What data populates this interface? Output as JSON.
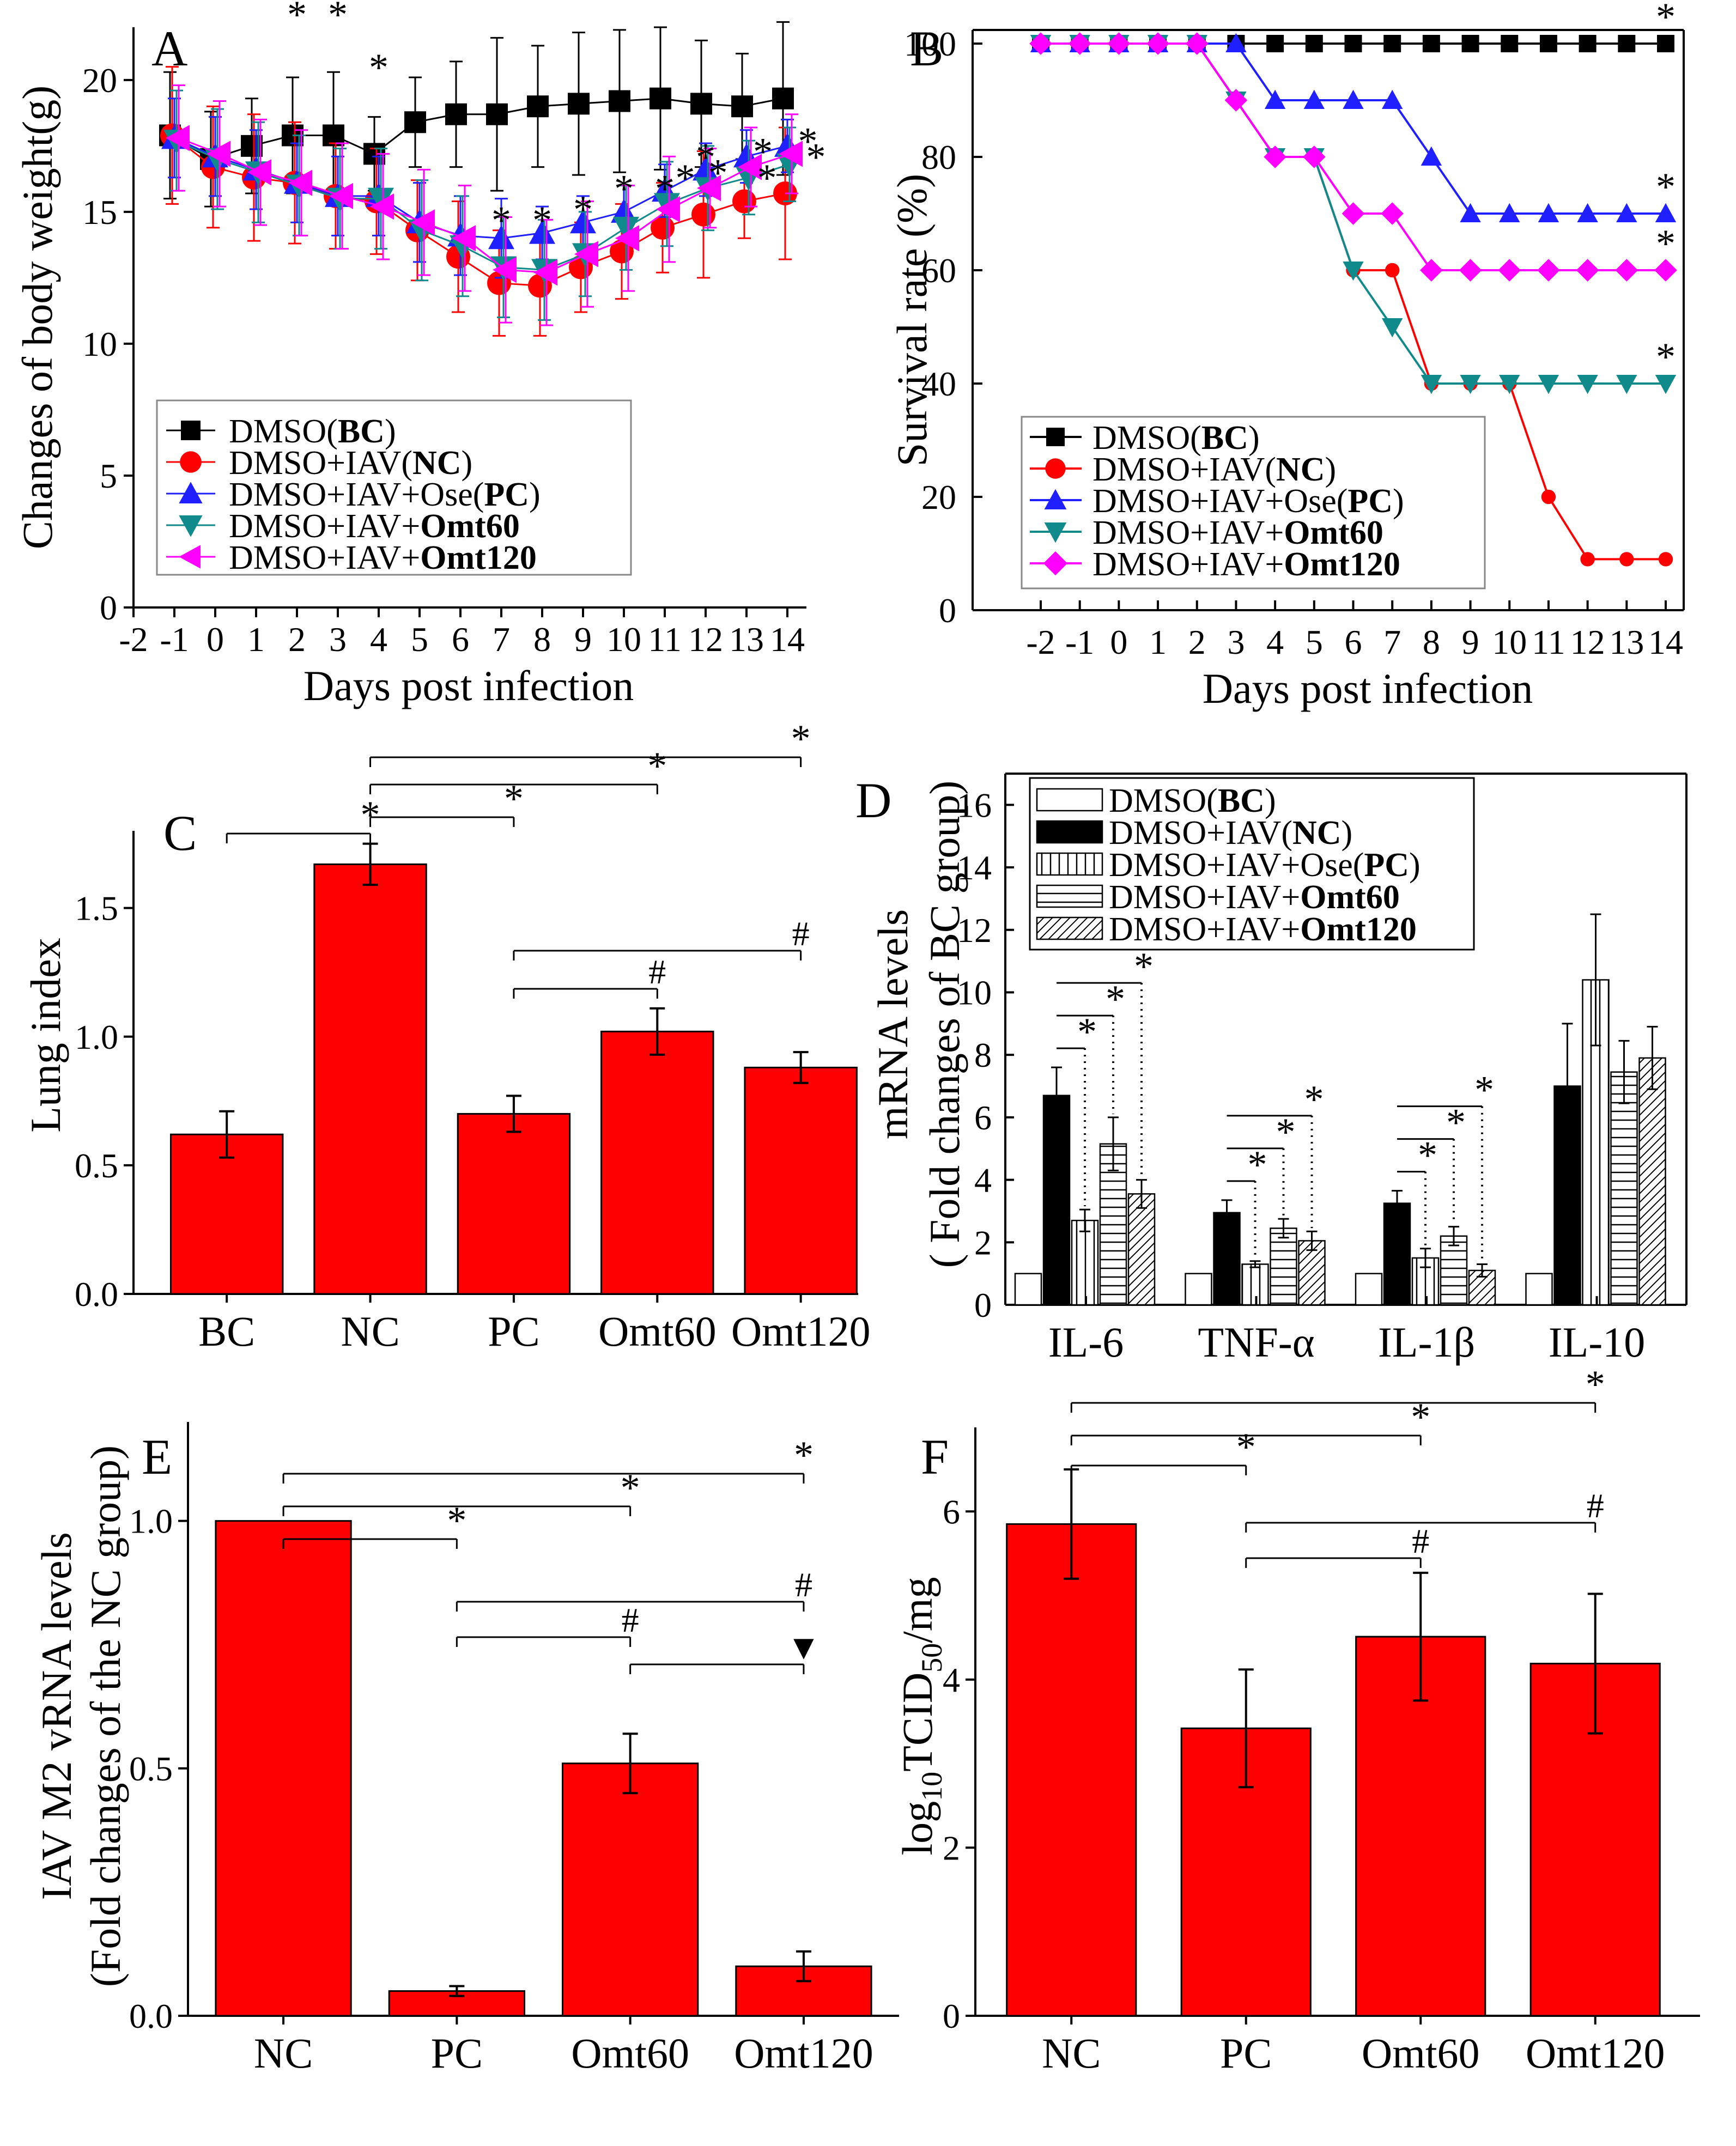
{
  "figure": {
    "colors": {
      "red": "#ff0000",
      "black": "#000000",
      "blue": "#1f1fff",
      "teal": "#108a8a",
      "magenta": "#ff00ff",
      "white": "#ffffff"
    }
  },
  "chart_data": [
    {
      "panel": "A",
      "type": "line",
      "title": "",
      "xlabel": "Days post infection",
      "ylabel": "Changes of  body weight(g)",
      "xlim": [
        -2,
        14
      ],
      "ylim": [
        0,
        22
      ],
      "xticks": [
        "-2",
        "-1",
        "0",
        "1",
        "2",
        "3",
        "4",
        "5",
        "6",
        "7",
        "8",
        "9",
        "10",
        "11",
        "12",
        "13",
        "14"
      ],
      "yticks": [
        "0",
        "5",
        "10",
        "15",
        "20"
      ],
      "x": [
        -1,
        0,
        1,
        2,
        3,
        4,
        5,
        6,
        7,
        8,
        9,
        10,
        11,
        12,
        13,
        14
      ],
      "series": [
        {
          "name": "DMSO(BC)",
          "name_plain": "DMSO(",
          "name_bold": "BC",
          "name_tail": ")",
          "color": "#000000",
          "marker": "square",
          "values": [
            17.9,
            17.0,
            17.5,
            17.9,
            17.9,
            17.2,
            18.4,
            18.7,
            18.7,
            19.0,
            19.1,
            19.2,
            19.3,
            19.1,
            19.0,
            19.3
          ],
          "err": [
            2.4,
            1.8,
            1.8,
            2.2,
            2.4,
            1.4,
            1.7,
            2.0,
            2.9,
            2.3,
            2.7,
            2.7,
            2.7,
            2.4,
            2.0,
            2.9
          ]
        },
        {
          "name": "DMSO+IAV(NC)",
          "name_plain": "DMSO+IAV(",
          "name_bold": "NC",
          "name_tail": ")",
          "color": "#ff0000",
          "marker": "circle",
          "values": [
            17.9,
            16.7,
            16.3,
            16.1,
            15.6,
            15.4,
            14.3,
            13.3,
            12.3,
            12.2,
            12.9,
            13.5,
            14.4,
            14.9,
            15.4,
            15.7
          ],
          "err": [
            2.6,
            2.3,
            2.4,
            2.3,
            2.0,
            2.0,
            1.9,
            2.1,
            2.0,
            1.9,
            1.7,
            1.8,
            1.7,
            2.4,
            1.4,
            2.5
          ]
        },
        {
          "name": "DMSO+IAV+Ose(PC)",
          "name_plain": "DMSO+IAV+Ose(",
          "name_bold": "PC",
          "name_tail": ")",
          "color": "#1f1fff",
          "marker": "triangle-up",
          "values": [
            17.8,
            17.1,
            16.6,
            16.1,
            15.6,
            15.6,
            14.6,
            14.1,
            14.0,
            14.2,
            14.6,
            15.0,
            15.8,
            16.6,
            17.1,
            17.5
          ],
          "err": [
            1.5,
            1.5,
            1.5,
            1.5,
            1.5,
            1.5,
            1.5,
            1.5,
            1.5,
            1.0,
            1.0,
            1.0,
            1.0,
            1.0,
            1.0,
            1.0
          ]
        },
        {
          "name": "DMSO+IAV+Omt60",
          "name_plain": "DMSO+IAV+",
          "name_bold": "Omt60",
          "name_tail": "",
          "color": "#108a8a",
          "marker": "triangle-down",
          "values": [
            17.7,
            17.0,
            16.5,
            16.0,
            15.5,
            15.5,
            14.3,
            13.7,
            12.9,
            12.8,
            13.4,
            14.4,
            15.3,
            15.9,
            16.3,
            16.8
          ],
          "err": [
            1.9,
            1.9,
            1.9,
            1.9,
            1.9,
            1.9,
            1.9,
            1.9,
            1.9,
            1.9,
            1.6,
            1.6,
            1.6,
            1.6,
            1.4,
            1.4
          ]
        },
        {
          "name": "DMSO+IAV+Omt120",
          "name_plain": "DMSO+IAV+",
          "name_bold": "Omt120",
          "name_tail": "",
          "color": "#ff00ff",
          "marker": "triangle-left",
          "values": [
            17.8,
            17.2,
            16.5,
            16.1,
            15.6,
            15.2,
            14.6,
            14.0,
            12.8,
            12.7,
            13.4,
            14.0,
            15.1,
            15.9,
            16.7,
            17.2
          ],
          "err": [
            2.0,
            2.0,
            2.0,
            2.0,
            2.0,
            2.0,
            2.0,
            2.0,
            2.0,
            2.0,
            2.0,
            2.0,
            2.0,
            1.5,
            1.5,
            1.5
          ]
        }
      ],
      "annotations": "* above points"
    },
    {
      "panel": "B",
      "type": "line",
      "title": "",
      "xlabel": "Days post infection",
      "ylabel": "Survival rate (%)",
      "xlim": [
        -3,
        14.5
      ],
      "ylim": [
        0,
        100
      ],
      "xticks": [
        "-2",
        "-1",
        "0",
        "1",
        "2",
        "3",
        "4",
        "5",
        "6",
        "7",
        "8",
        "9",
        "10",
        "11",
        "12",
        "13",
        "14"
      ],
      "yticks": [
        "0",
        "20",
        "40",
        "60",
        "80",
        "100"
      ],
      "x": [
        -2,
        -1,
        0,
        1,
        2,
        3,
        4,
        5,
        6,
        7,
        8,
        9,
        10,
        11,
        12,
        13,
        14
      ],
      "series": [
        {
          "name": "DMSO(BC)",
          "name_plain": "DMSO(",
          "name_bold": "BC",
          "name_tail": ")",
          "color": "#000000",
          "marker": "square",
          "values": [
            100,
            100,
            100,
            100,
            100,
            100,
            100,
            100,
            100,
            100,
            100,
            100,
            100,
            100,
            100,
            100,
            100
          ]
        },
        {
          "name": "DMSO+IAV(NC)",
          "name_plain": "DMSO+IAV(",
          "name_bold": "NC",
          "name_tail": ")",
          "color": "#ff0000",
          "marker": "circle",
          "values": [
            100,
            100,
            100,
            100,
            100,
            90,
            80,
            80,
            60,
            60,
            40,
            40,
            40,
            20,
            9,
            9,
            9
          ]
        },
        {
          "name": "DMSO+IAV+Ose(PC)",
          "name_plain": "DMSO+IAV+Ose(",
          "name_bold": "PC",
          "name_tail": ")",
          "color": "#1f1fff",
          "marker": "triangle-up",
          "values": [
            100,
            100,
            100,
            100,
            100,
            100,
            90,
            90,
            90,
            90,
            80,
            70,
            70,
            70,
            70,
            70,
            70
          ]
        },
        {
          "name": "DMSO+IAV+Omt60",
          "name_plain": "DMSO+IAV+",
          "name_bold": "Omt60",
          "name_tail": "",
          "color": "#108a8a",
          "marker": "triangle-down",
          "values": [
            100,
            100,
            100,
            100,
            100,
            90,
            80,
            80,
            60,
            50,
            40,
            40,
            40,
            40,
            40,
            40,
            40
          ]
        },
        {
          "name": "DMSO+IAV+Omt120",
          "name_plain": "DMSO+IAV+",
          "name_bold": "Omt120",
          "name_tail": "",
          "color": "#ff00ff",
          "marker": "diamond",
          "values": [
            100,
            100,
            100,
            100,
            100,
            90,
            80,
            80,
            70,
            70,
            60,
            60,
            60,
            60,
            60,
            60,
            60
          ]
        }
      ],
      "annotations": "* at day 14 for BC, PC, Omt120, Omt60"
    },
    {
      "panel": "C",
      "type": "bar",
      "title": "",
      "xlabel": "",
      "ylabel": "Lung index",
      "ylim": [
        0,
        1.8
      ],
      "yticks": [
        "0.0",
        "0.5",
        "1.0",
        "1.5"
      ],
      "categories": [
        "BC",
        "NC",
        "PC",
        "Omt60",
        "Omt120"
      ],
      "values": [
        0.62,
        1.67,
        0.7,
        1.02,
        0.88
      ],
      "err": [
        0.09,
        0.08,
        0.07,
        0.09,
        0.06
      ],
      "color": "#ff0000",
      "brackets": [
        {
          "from": 0,
          "to": 1,
          "label": "*"
        },
        {
          "from": 1,
          "to": 2,
          "label": "*"
        },
        {
          "from": 1,
          "to": 3,
          "label": "*"
        },
        {
          "from": 1,
          "to": 4,
          "label": "*"
        },
        {
          "from": 2,
          "to": 3,
          "label": "#"
        },
        {
          "from": 2,
          "to": 4,
          "label": "#"
        }
      ]
    },
    {
      "panel": "D",
      "type": "bar",
      "title": "",
      "xlabel": "",
      "ylabel": "mRNA levels",
      "ylabel2": "( Fold changes of BC group)",
      "ylim": [
        0,
        17
      ],
      "yticks": [
        "0",
        "2",
        "4",
        "6",
        "8",
        "10",
        "12",
        "14",
        "16"
      ],
      "categories": [
        "IL-6",
        "TNF-α",
        "IL-1β",
        "IL-10"
      ],
      "series": [
        {
          "name": "DMSO(BC)",
          "name_plain": "DMSO(",
          "name_bold": "BC",
          "name_tail": ")",
          "fill": "white",
          "values": [
            1.0,
            1.0,
            1.0,
            1.0
          ],
          "err": [
            0,
            0,
            0,
            0
          ]
        },
        {
          "name": "DMSO+IAV(NC)",
          "name_plain": "DMSO+IAV(",
          "name_bold": "NC",
          "name_tail": ")",
          "fill": "black",
          "values": [
            6.7,
            2.95,
            3.25,
            7.0
          ],
          "err": [
            0.9,
            0.4,
            0.4,
            2.0
          ]
        },
        {
          "name": "DMSO+IAV+Ose(PC)",
          "name_plain": "DMSO+IAV+Ose(",
          "name_bold": "PC",
          "name_tail": ")",
          "fill": "vertical",
          "values": [
            2.7,
            1.3,
            1.5,
            10.4
          ],
          "err": [
            0.35,
            0.1,
            0.3,
            2.1
          ]
        },
        {
          "name": "DMSO+IAV+Omt60",
          "name_plain": "DMSO+IAV+",
          "name_bold": "Omt60",
          "name_tail": "",
          "fill": "horizontal",
          "values": [
            5.15,
            2.45,
            2.2,
            7.45
          ],
          "err": [
            0.85,
            0.3,
            0.3,
            1.0
          ]
        },
        {
          "name": "DMSO+IAV+Omt120",
          "name_plain": "DMSO+IAV+",
          "name_bold": "Omt120",
          "name_tail": "",
          "fill": "diagonal",
          "values": [
            3.55,
            2.05,
            1.1,
            7.9
          ],
          "err": [
            0.45,
            0.3,
            0.2,
            1.0
          ]
        }
      ],
      "annotations": "* brackets NC vs PC/Omt60/Omt120"
    },
    {
      "panel": "E",
      "type": "bar",
      "title": "",
      "xlabel": "",
      "ylabel": "IAV M2 vRNA levels",
      "ylabel2": "(Fold changes of the NC group)",
      "ylim": [
        0,
        1.2
      ],
      "yticks": [
        "0.0",
        "0.5",
        "1.0"
      ],
      "categories": [
        "NC",
        "PC",
        "Omt60",
        "Omt120"
      ],
      "values": [
        1.0,
        0.05,
        0.51,
        0.1
      ],
      "err": [
        0,
        0.01,
        0.06,
        0.03
      ],
      "color": "#ff0000",
      "brackets": [
        {
          "from": 0,
          "to": 1,
          "label": "*"
        },
        {
          "from": 0,
          "to": 2,
          "label": "*"
        },
        {
          "from": 0,
          "to": 3,
          "label": "*"
        },
        {
          "from": 1,
          "to": 2,
          "label": "#"
        },
        {
          "from": 1,
          "to": 3,
          "label": "#"
        },
        {
          "from": 2,
          "to": 3,
          "label": "▼"
        }
      ]
    },
    {
      "panel": "F",
      "type": "bar",
      "title": "",
      "xlabel": "",
      "ylabel": "log10TCID50/mg",
      "ylabel_parts": [
        "log",
        "10",
        "TCID",
        "50",
        "/mg"
      ],
      "ylim": [
        0,
        7
      ],
      "yticks": [
        "0",
        "2",
        "4",
        "6"
      ],
      "categories": [
        "NC",
        "PC",
        "Omt60",
        "Omt120"
      ],
      "values": [
        5.85,
        3.42,
        4.51,
        4.19
      ],
      "err": [
        0.65,
        0.7,
        0.76,
        0.83
      ],
      "color": "#ff0000",
      "brackets": [
        {
          "from": 0,
          "to": 1,
          "label": "*"
        },
        {
          "from": 0,
          "to": 2,
          "label": "*"
        },
        {
          "from": 0,
          "to": 3,
          "label": "*"
        },
        {
          "from": 1,
          "to": 2,
          "label": "#"
        },
        {
          "from": 1,
          "to": 3,
          "label": "#"
        }
      ]
    }
  ]
}
